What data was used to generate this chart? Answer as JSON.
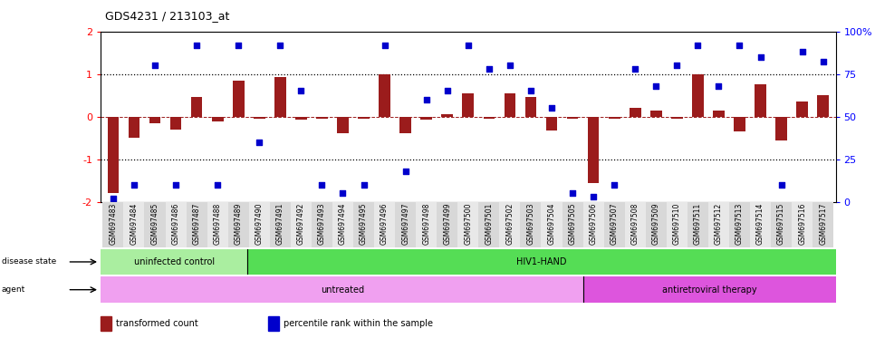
{
  "title": "GDS4231 / 213103_at",
  "samples": [
    "GSM697483",
    "GSM697484",
    "GSM697485",
    "GSM697486",
    "GSM697487",
    "GSM697488",
    "GSM697489",
    "GSM697490",
    "GSM697491",
    "GSM697492",
    "GSM697493",
    "GSM697494",
    "GSM697495",
    "GSM697496",
    "GSM697497",
    "GSM697498",
    "GSM697499",
    "GSM697500",
    "GSM697501",
    "GSM697502",
    "GSM697503",
    "GSM697504",
    "GSM697505",
    "GSM697506",
    "GSM697507",
    "GSM697508",
    "GSM697509",
    "GSM697510",
    "GSM697511",
    "GSM697512",
    "GSM697513",
    "GSM697514",
    "GSM697515",
    "GSM697516",
    "GSM697517"
  ],
  "bar_values": [
    -1.8,
    -0.5,
    -0.15,
    -0.3,
    0.45,
    -0.12,
    0.85,
    -0.05,
    0.92,
    -0.08,
    -0.05,
    -0.38,
    -0.05,
    1.0,
    -0.4,
    -0.08,
    0.05,
    0.55,
    -0.05,
    0.55,
    0.45,
    -0.32,
    -0.05,
    -1.55,
    -0.05,
    0.2,
    0.15,
    -0.05,
    1.0,
    0.15,
    -0.35,
    0.75,
    -0.55,
    0.35,
    0.5
  ],
  "dot_pct": [
    2,
    10,
    80,
    10,
    92,
    10,
    92,
    35,
    92,
    65,
    10,
    5,
    10,
    92,
    18,
    60,
    65,
    92,
    78,
    80,
    65,
    55,
    5,
    3,
    10,
    78,
    68,
    80,
    92,
    68,
    92,
    85,
    10,
    88,
    82
  ],
  "bar_color": "#9b1c1c",
  "dot_color": "#0000cc",
  "ylim": [
    -2,
    2
  ],
  "y2lim": [
    0,
    100
  ],
  "yticks": [
    -2,
    -1,
    0,
    1,
    2
  ],
  "y2ticks": [
    0,
    25,
    50,
    75,
    100
  ],
  "y2ticklabels": [
    "0",
    "25",
    "50",
    "75",
    "100%"
  ],
  "hlines": [
    -1,
    0,
    1
  ],
  "disease_state_groups": [
    {
      "label": "uninfected control",
      "start": 0,
      "end": 7,
      "color": "#aaeea0"
    },
    {
      "label": "HIV1-HAND",
      "start": 7,
      "end": 35,
      "color": "#55dd55"
    }
  ],
  "agent_groups": [
    {
      "label": "untreated",
      "start": 0,
      "end": 23,
      "color": "#f0a0f0"
    },
    {
      "label": "antiretroviral therapy",
      "start": 23,
      "end": 35,
      "color": "#dd55dd"
    }
  ],
  "disease_state_label": "disease state",
  "agent_label": "agent",
  "legend": [
    {
      "label": "transformed count",
      "color": "#9b1c1c"
    },
    {
      "label": "percentile rank within the sample",
      "color": "#0000cc"
    }
  ],
  "tick_bg_even": "#d8d8d8",
  "tick_bg_odd": "#e8e8e8"
}
